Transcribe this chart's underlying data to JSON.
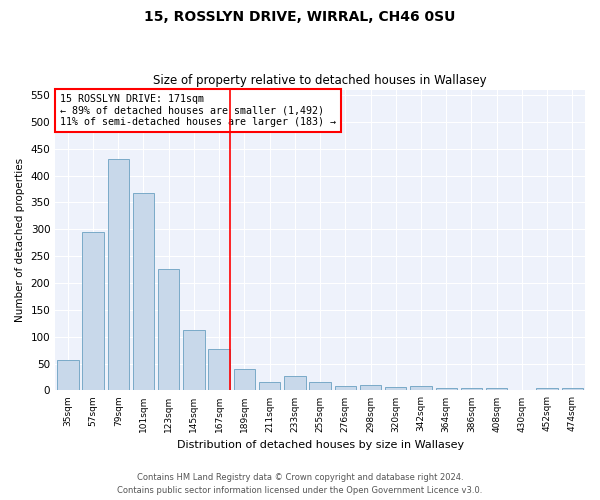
{
  "title": "15, ROSSLYN DRIVE, WIRRAL, CH46 0SU",
  "subtitle": "Size of property relative to detached houses in Wallasey",
  "xlabel": "Distribution of detached houses by size in Wallasey",
  "ylabel": "Number of detached properties",
  "bar_color": "#c8d8ea",
  "bar_edge_color": "#7aaac8",
  "background_color": "#eef2fb",
  "grid_color": "#ffffff",
  "categories": [
    "35sqm",
    "57sqm",
    "79sqm",
    "101sqm",
    "123sqm",
    "145sqm",
    "167sqm",
    "189sqm",
    "211sqm",
    "233sqm",
    "255sqm",
    "276sqm",
    "298sqm",
    "320sqm",
    "342sqm",
    "364sqm",
    "386sqm",
    "408sqm",
    "430sqm",
    "452sqm",
    "474sqm"
  ],
  "values": [
    57,
    294,
    430,
    368,
    226,
    113,
    78,
    40,
    15,
    27,
    15,
    9,
    11,
    6,
    8,
    5,
    5,
    5,
    0,
    5,
    5
  ],
  "ylim": [
    0,
    560
  ],
  "yticks": [
    0,
    50,
    100,
    150,
    200,
    250,
    300,
    350,
    400,
    450,
    500,
    550
  ],
  "property_line_idx": 6,
  "annotation_line1": "15 ROSSLYN DRIVE: 171sqm",
  "annotation_line2": "← 89% of detached houses are smaller (1,492)",
  "annotation_line3": "11% of semi-detached houses are larger (183) →",
  "footer_line1": "Contains HM Land Registry data © Crown copyright and database right 2024.",
  "footer_line2": "Contains public sector information licensed under the Open Government Licence v3.0."
}
